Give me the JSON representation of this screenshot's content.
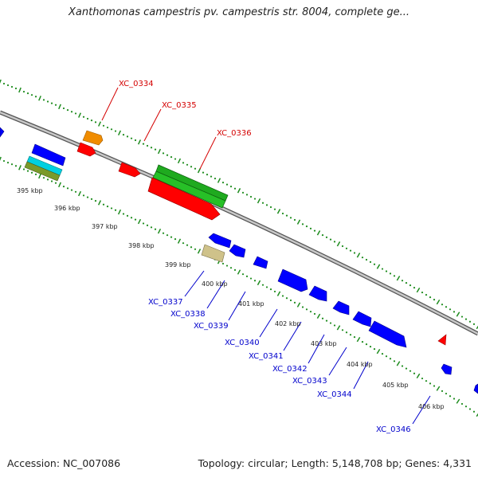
{
  "title": "Xanthomonas campestris pv. campestris str. 8004, complete ge...",
  "footer": {
    "accession": "Accession: NC_007086",
    "topology": "Topology: circular; Length: 5,148,708 bp; Genes: 4,331"
  },
  "colors": {
    "backbone": "#9a9a9a",
    "tick": "#1e8c1e",
    "forward_label": "#d40000",
    "reverse_label": "#0000cc"
  },
  "kbp_labels": [
    "395 kbp",
    "396 kbp",
    "397 kbp",
    "398 kbp",
    "399 kbp",
    "400 kbp",
    "401 kbp",
    "402 kbp",
    "403 kbp",
    "404 kbp",
    "405 kbp",
    "406 kbp"
  ],
  "forward_genes": [
    "XC_0334",
    "XC_0335",
    "XC_0336"
  ],
  "reverse_genes": [
    "XC_0337",
    "XC_0338",
    "XC_0339",
    "XC_0340",
    "XC_0341",
    "XC_0342",
    "XC_0343",
    "XC_0344",
    "XC_0346"
  ]
}
